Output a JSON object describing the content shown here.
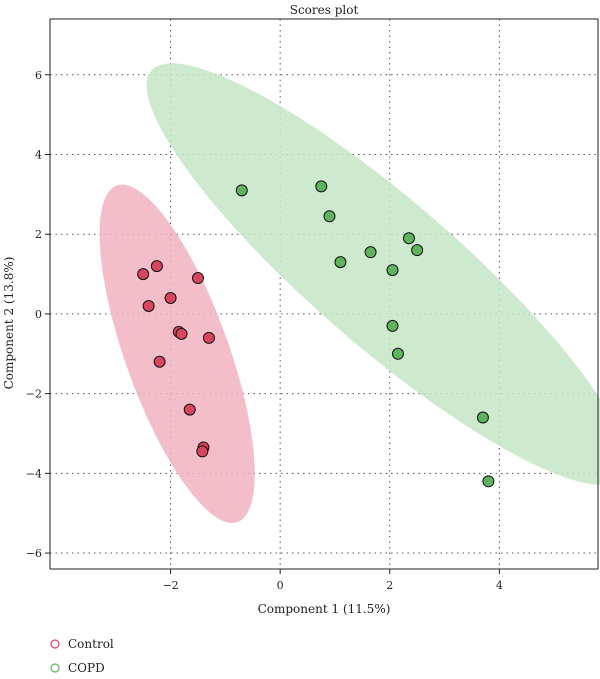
{
  "chart_data": {
    "type": "scatter",
    "title": "Scores plot",
    "xlabel": "Component 1 (11.5%)",
    "ylabel": "Component 2 (13.8%)",
    "xlim": [
      -4.2,
      5.8
    ],
    "ylim": [
      -6.4,
      7.4
    ],
    "x_ticks": [
      -2,
      0,
      2,
      4
    ],
    "y_ticks": [
      -6,
      -4,
      -2,
      0,
      2,
      4,
      6
    ],
    "grid": true,
    "legend_position": "bottom-left",
    "series": [
      {
        "name": "Control",
        "color": "#d9455f",
        "ellipse_color": "#f1b3c0",
        "points": [
          {
            "x": -2.5,
            "y": 1.0
          },
          {
            "x": -2.25,
            "y": 1.2
          },
          {
            "x": -2.4,
            "y": 0.2
          },
          {
            "x": -2.0,
            "y": 0.4
          },
          {
            "x": -1.5,
            "y": 0.9
          },
          {
            "x": -1.85,
            "y": -0.45
          },
          {
            "x": -1.8,
            "y": -0.5
          },
          {
            "x": -1.3,
            "y": -0.6
          },
          {
            "x": -2.2,
            "y": -1.2
          },
          {
            "x": -1.65,
            "y": -2.4
          },
          {
            "x": -1.4,
            "y": -3.35
          },
          {
            "x": -1.42,
            "y": -3.45
          }
        ],
        "ellipse": {
          "cx": -1.88,
          "cy": -1.0,
          "a": 4.37,
          "b": 0.97,
          "angle_deg": 104
        }
      },
      {
        "name": "COPD",
        "color": "#5fb35f",
        "ellipse_color": "#c6e6c6",
        "points": [
          {
            "x": -0.7,
            "y": 3.1
          },
          {
            "x": 0.75,
            "y": 3.2
          },
          {
            "x": 0.9,
            "y": 2.45
          },
          {
            "x": 1.1,
            "y": 1.3
          },
          {
            "x": 1.65,
            "y": 1.55
          },
          {
            "x": 2.35,
            "y": 1.9
          },
          {
            "x": 2.5,
            "y": 1.6
          },
          {
            "x": 2.05,
            "y": 1.1
          },
          {
            "x": 2.05,
            "y": -0.3
          },
          {
            "x": 2.15,
            "y": -1.0
          },
          {
            "x": 3.7,
            "y": -2.6
          },
          {
            "x": 3.8,
            "y": -4.2
          }
        ],
        "ellipse": {
          "cx": 1.94,
          "cy": 1.0,
          "a": 6.69,
          "b": 1.55,
          "angle_deg": -51
        }
      }
    ]
  }
}
